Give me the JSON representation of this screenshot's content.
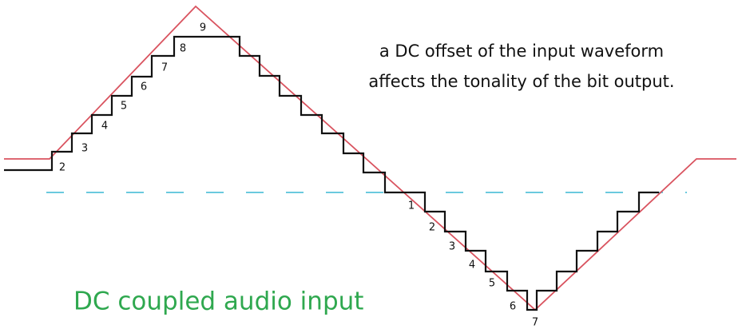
{
  "annotation": [
    "a DC offset of the input waveform",
    "affects the tonality of the bit output."
  ],
  "caption": "DC coupled audio input",
  "rising_labels": [
    "2",
    "3",
    "4",
    "5",
    "6",
    "7",
    "8",
    "9"
  ],
  "falling_labels": [
    "1",
    "2",
    "3",
    "4",
    "5",
    "6",
    "7"
  ]
}
